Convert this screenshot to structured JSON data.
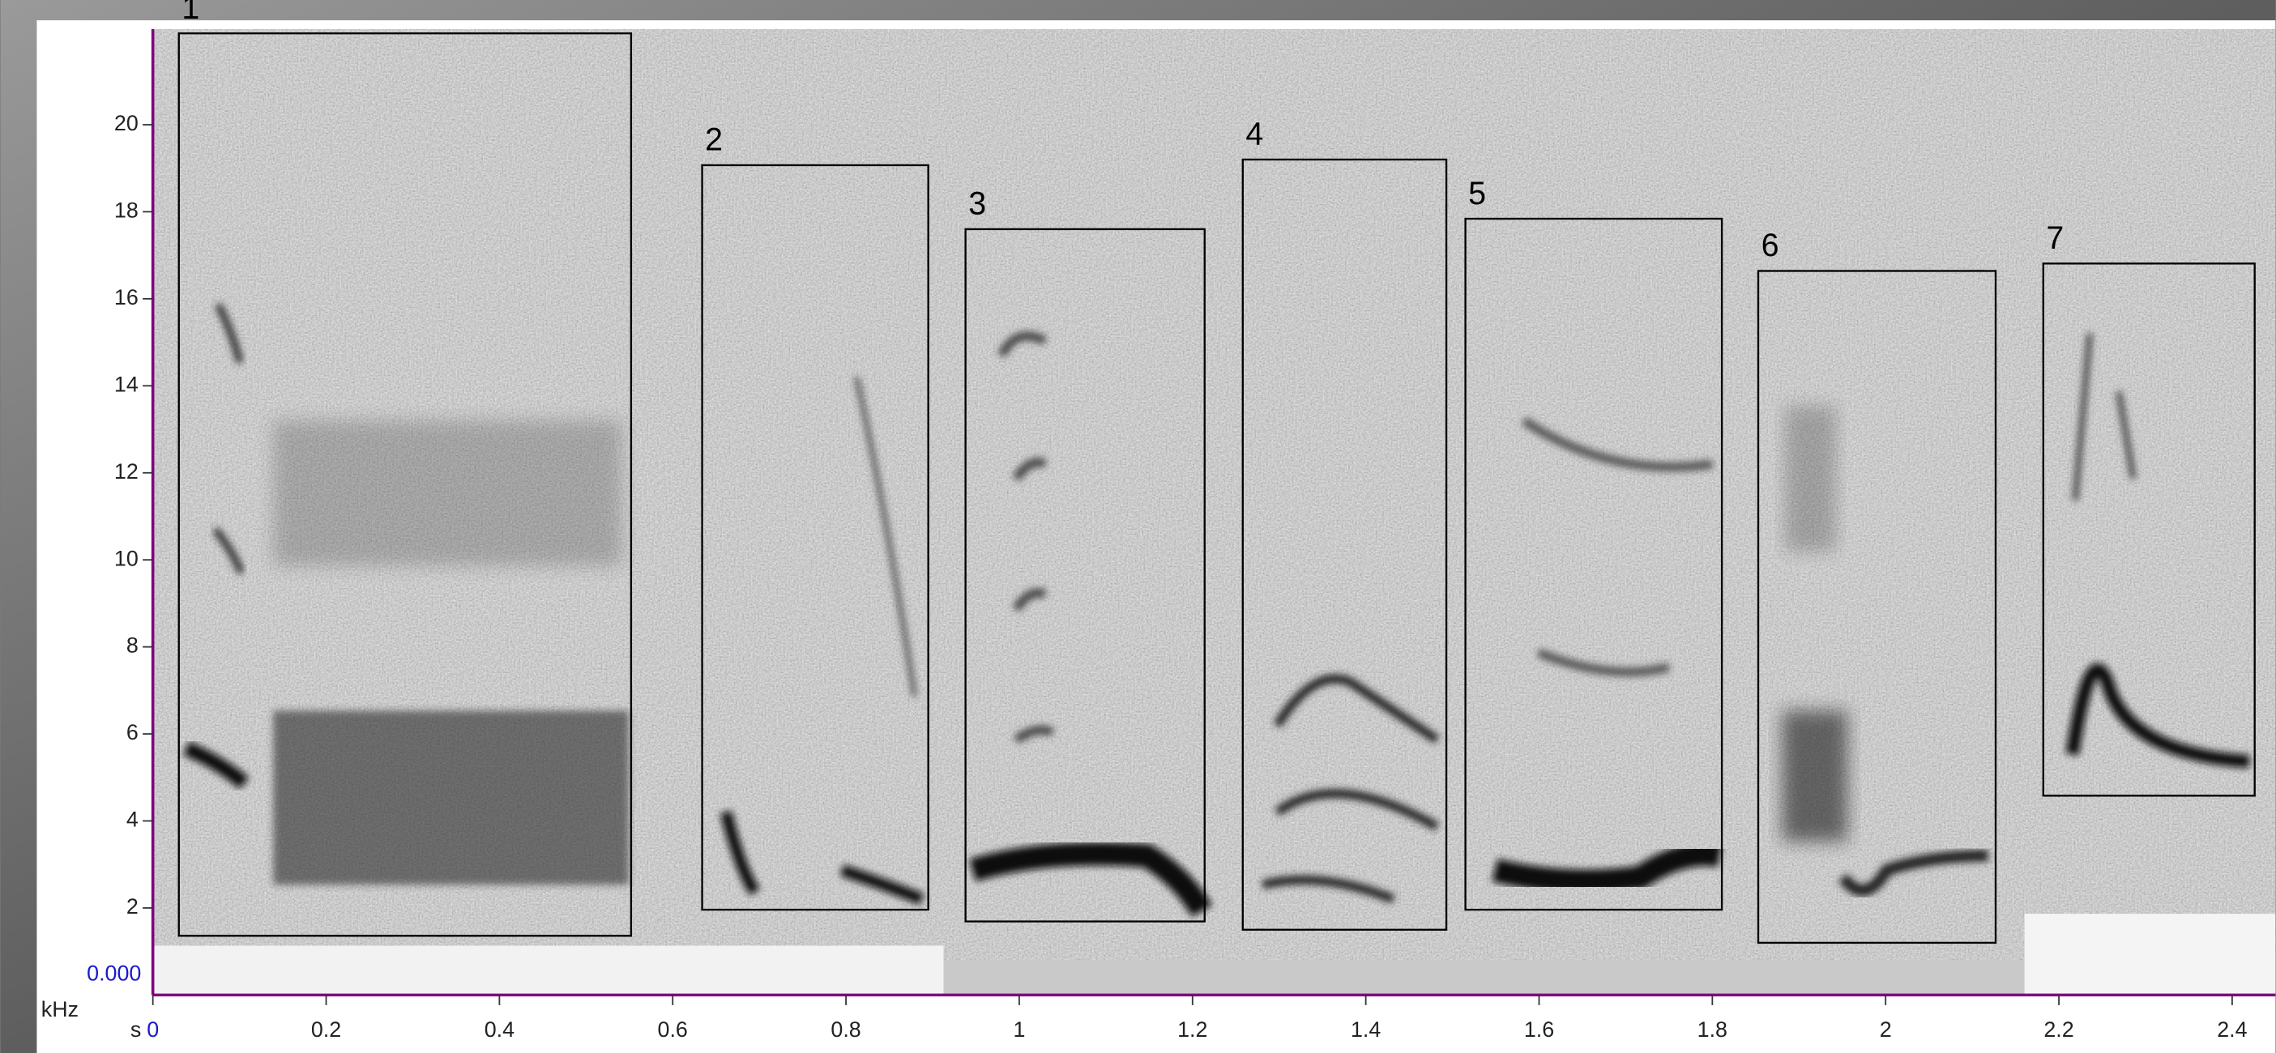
{
  "chart_data": {
    "type": "spectrogram",
    "x_unit": "s",
    "y_unit": "kHz",
    "cursor_label": "0.000",
    "xlim": [
      0,
      2.45
    ],
    "ylim": [
      0,
      22.2
    ],
    "xticks": [
      0,
      0.2,
      0.4,
      0.6,
      0.8,
      1,
      1.2,
      1.4,
      1.6,
      1.8,
      2,
      2.2,
      2.4
    ],
    "yticks": [
      2,
      4,
      6,
      8,
      10,
      12,
      14,
      16,
      18,
      20
    ],
    "axis_color": "#800080",
    "box_color": "#000000",
    "annotations": [
      {
        "label": "1",
        "x": [
          0.03,
          0.552
        ],
        "y": [
          1.36,
          22.1
        ]
      },
      {
        "label": "2",
        "x": [
          0.634,
          0.895
        ],
        "y": [
          1.96,
          19.07
        ]
      },
      {
        "label": "3",
        "x": [
          0.938,
          1.214
        ],
        "y": [
          1.69,
          17.6
        ]
      },
      {
        "label": "4",
        "x": [
          1.258,
          1.493
        ],
        "y": [
          1.5,
          19.2
        ]
      },
      {
        "label": "5",
        "x": [
          1.515,
          1.811
        ],
        "y": [
          1.96,
          17.84
        ]
      },
      {
        "label": "6",
        "x": [
          1.853,
          2.127
        ],
        "y": [
          1.2,
          16.64
        ]
      },
      {
        "label": "7",
        "x": [
          2.182,
          2.426
        ],
        "y": [
          4.58,
          16.81
        ]
      }
    ]
  }
}
